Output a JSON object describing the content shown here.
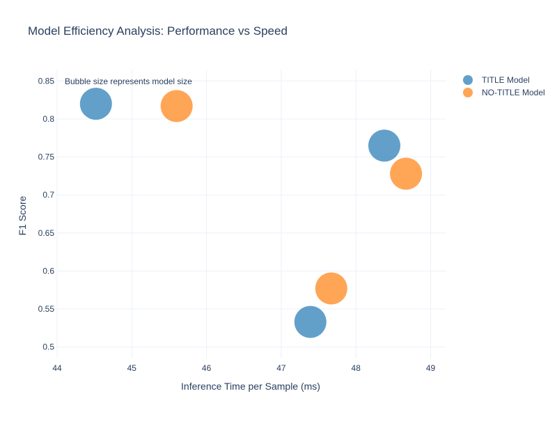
{
  "chart_data": {
    "type": "scatter",
    "title": "Model Efficiency Analysis: Performance vs Speed",
    "xlabel": "Inference Time per Sample (ms)",
    "ylabel": "F1 Score",
    "xlim": [
      44,
      49.2
    ],
    "ylim": [
      0.485,
      0.865
    ],
    "x_ticks": [
      44,
      45,
      46,
      47,
      48,
      49
    ],
    "y_ticks": [
      0.5,
      0.55,
      0.6,
      0.65,
      0.7,
      0.75,
      0.8,
      0.85
    ],
    "x_tick_labels": [
      "44",
      "45",
      "46",
      "47",
      "48",
      "49"
    ],
    "y_tick_labels": [
      "0.5",
      "0.55",
      "0.6",
      "0.65",
      "0.7",
      "0.75",
      "0.8",
      "0.85"
    ],
    "grid": true,
    "legend_position": "top-right",
    "annotation": "Bubble size represents model size",
    "series": [
      {
        "name": "TITLE Model",
        "color": "#1f77b4",
        "points": [
          {
            "x": 44.52,
            "y": 0.82
          },
          {
            "x": 48.38,
            "y": 0.765
          },
          {
            "x": 47.39,
            "y": 0.533
          }
        ]
      },
      {
        "name": "NO-TITLE Model",
        "color": "#ff7f0e",
        "points": [
          {
            "x": 45.6,
            "y": 0.817
          },
          {
            "x": 48.67,
            "y": 0.728
          },
          {
            "x": 47.67,
            "y": 0.577
          }
        ]
      }
    ]
  }
}
